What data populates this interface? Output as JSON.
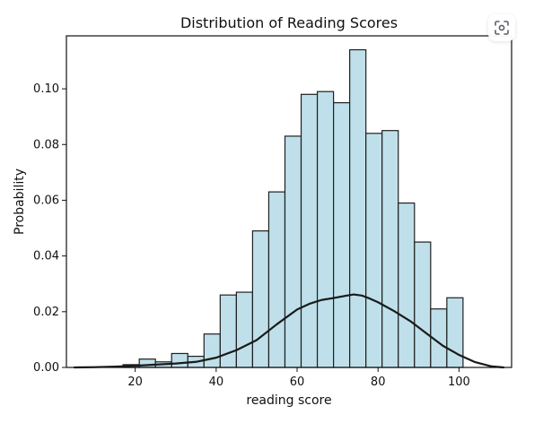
{
  "chart_data": {
    "type": "bar",
    "title": "Distribution of Reading Scores",
    "xlabel": "reading score",
    "ylabel": "Probability",
    "xlim": [
      3,
      113
    ],
    "ylim": [
      0,
      0.119
    ],
    "x_ticks": [
      20,
      40,
      60,
      80,
      100
    ],
    "y_ticks": [
      0.0,
      0.02,
      0.04,
      0.06,
      0.08,
      0.1
    ],
    "x_tick_labels": [
      "20",
      "40",
      "60",
      "80",
      "100"
    ],
    "y_tick_labels": [
      "0.00",
      "0.02",
      "0.04",
      "0.06",
      "0.08",
      "0.10"
    ],
    "bins": [
      {
        "start": 17.0,
        "end": 21.0,
        "value": 0.001
      },
      {
        "start": 21.0,
        "end": 25.0,
        "value": 0.003
      },
      {
        "start": 25.0,
        "end": 29.0,
        "value": 0.002
      },
      {
        "start": 29.0,
        "end": 33.0,
        "value": 0.005
      },
      {
        "start": 33.0,
        "end": 37.0,
        "value": 0.004
      },
      {
        "start": 37.0,
        "end": 41.0,
        "value": 0.012
      },
      {
        "start": 41.0,
        "end": 45.0,
        "value": 0.026
      },
      {
        "start": 45.0,
        "end": 49.0,
        "value": 0.027
      },
      {
        "start": 49.0,
        "end": 53.0,
        "value": 0.049
      },
      {
        "start": 53.0,
        "end": 57.0,
        "value": 0.063
      },
      {
        "start": 57.0,
        "end": 61.0,
        "value": 0.083
      },
      {
        "start": 61.0,
        "end": 65.0,
        "value": 0.098
      },
      {
        "start": 65.0,
        "end": 69.0,
        "value": 0.099
      },
      {
        "start": 69.0,
        "end": 73.0,
        "value": 0.095
      },
      {
        "start": 73.0,
        "end": 77.0,
        "value": 0.114
      },
      {
        "start": 77.0,
        "end": 81.0,
        "value": 0.084
      },
      {
        "start": 81.0,
        "end": 85.0,
        "value": 0.085
      },
      {
        "start": 85.0,
        "end": 89.0,
        "value": 0.059
      },
      {
        "start": 89.0,
        "end": 93.0,
        "value": 0.045
      },
      {
        "start": 93.0,
        "end": 97.0,
        "value": 0.021
      },
      {
        "start": 97.0,
        "end": 101.0,
        "value": 0.025
      }
    ],
    "density_curve": {
      "x": [
        5,
        10,
        15,
        20,
        25,
        30,
        35,
        40,
        45,
        50,
        55,
        60,
        63,
        66,
        69,
        72,
        74,
        76,
        78,
        80,
        84,
        88,
        92,
        96,
        100,
        104,
        108,
        111
      ],
      "y": [
        0.0,
        0.0001,
        0.0003,
        0.0006,
        0.001,
        0.0014,
        0.002,
        0.0035,
        0.0062,
        0.0098,
        0.0155,
        0.0208,
        0.0228,
        0.0242,
        0.0249,
        0.0257,
        0.0262,
        0.0258,
        0.0247,
        0.0234,
        0.0202,
        0.0166,
        0.0122,
        0.0078,
        0.0045,
        0.0019,
        0.0004,
        0.0
      ]
    },
    "colors": {
      "bar_fill": "#bfe0ea",
      "bar_edge": "#1f1f1f",
      "curve": "#1a1a1a",
      "text": "#111111",
      "axis": "#111111"
    },
    "grid": false
  },
  "ui": {
    "overlay_icon": "capture-icon"
  }
}
